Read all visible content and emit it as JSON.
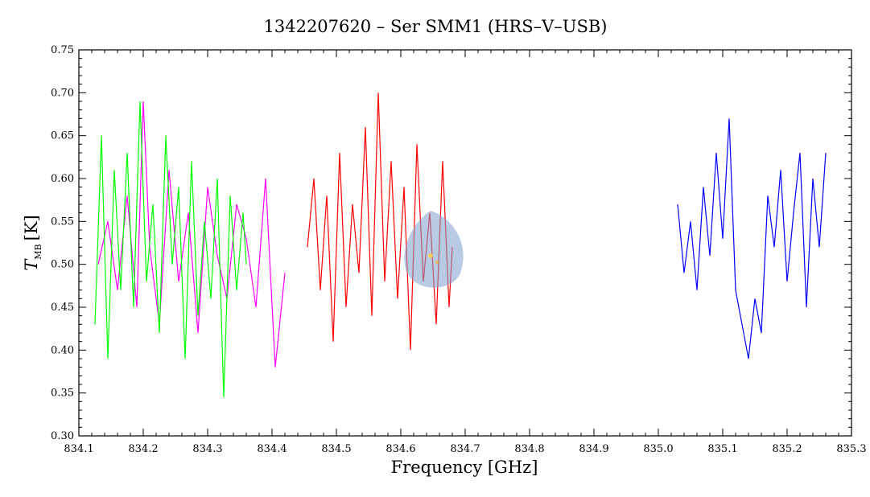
{
  "chart_data": {
    "type": "line",
    "title": "1342207620 – Ser SMM1 (HRS–V–USB)",
    "xlabel": "Frequency [GHz]",
    "ylabel": {
      "symbol": "T",
      "subscript": "MB",
      "unit": "[K]"
    },
    "xlim": [
      834.1,
      835.3
    ],
    "ylim": [
      0.3,
      0.75
    ],
    "xticks": [
      "834.1",
      "834.2",
      "834.3",
      "834.4",
      "834.5",
      "834.6",
      "834.7",
      "834.8",
      "834.9",
      "835.0",
      "835.1",
      "835.2",
      "835.3"
    ],
    "yticks": [
      "0.30",
      "0.35",
      "0.40",
      "0.45",
      "0.50",
      "0.55",
      "0.60",
      "0.65",
      "0.70",
      "0.75"
    ],
    "grid": false,
    "legend": "none",
    "series": [
      {
        "color": "#ff00ff",
        "x": [
          834.13,
          834.145,
          834.16,
          834.175,
          834.19,
          834.2,
          834.21,
          834.225,
          834.24,
          834.255,
          834.27,
          834.285,
          834.3,
          834.315,
          834.33,
          834.345,
          834.36,
          834.375,
          834.39,
          834.405,
          834.42
        ],
        "y": [
          0.5,
          0.55,
          0.47,
          0.58,
          0.45,
          0.69,
          0.52,
          0.43,
          0.61,
          0.48,
          0.56,
          0.42,
          0.59,
          0.51,
          0.46,
          0.57,
          0.53,
          0.45,
          0.6,
          0.38,
          0.49
        ]
      },
      {
        "color": "#00ff00",
        "x": [
          834.125,
          834.135,
          834.145,
          834.155,
          834.165,
          834.175,
          834.185,
          834.195,
          834.205,
          834.215,
          834.225,
          834.235,
          834.245,
          834.255,
          834.265,
          834.275,
          834.285,
          834.295,
          834.305,
          834.315,
          834.325,
          834.335,
          834.345,
          834.355,
          834.36
        ],
        "y": [
          0.43,
          0.65,
          0.39,
          0.61,
          0.47,
          0.63,
          0.45,
          0.69,
          0.48,
          0.57,
          0.42,
          0.65,
          0.5,
          0.59,
          0.39,
          0.62,
          0.44,
          0.55,
          0.46,
          0.6,
          0.345,
          0.58,
          0.47,
          0.56,
          0.5
        ]
      },
      {
        "color": "#ff0000",
        "x": [
          834.455,
          834.465,
          834.475,
          834.485,
          834.495,
          834.505,
          834.515,
          834.525,
          834.535,
          834.545,
          834.555,
          834.565,
          834.575,
          834.585,
          834.595,
          834.605,
          834.615,
          834.625,
          834.635,
          834.645,
          834.655,
          834.665,
          834.675,
          834.68
        ],
        "y": [
          0.52,
          0.6,
          0.47,
          0.58,
          0.41,
          0.63,
          0.45,
          0.57,
          0.49,
          0.66,
          0.44,
          0.7,
          0.48,
          0.62,
          0.46,
          0.59,
          0.4,
          0.64,
          0.48,
          0.56,
          0.43,
          0.62,
          0.45,
          0.52
        ]
      },
      {
        "color": "#0000ff",
        "x": [
          835.03,
          835.04,
          835.05,
          835.06,
          835.07,
          835.08,
          835.09,
          835.1,
          835.11,
          835.12,
          835.13,
          835.14,
          835.15,
          835.16,
          835.17,
          835.18,
          835.19,
          835.2,
          835.21,
          835.22,
          835.23,
          835.24,
          835.25,
          835.26
        ],
        "y": [
          0.57,
          0.49,
          0.55,
          0.47,
          0.59,
          0.51,
          0.63,
          0.53,
          0.67,
          0.47,
          0.43,
          0.39,
          0.46,
          0.42,
          0.58,
          0.52,
          0.61,
          0.48,
          0.56,
          0.63,
          0.45,
          0.6,
          0.52,
          0.63
        ]
      }
    ]
  }
}
